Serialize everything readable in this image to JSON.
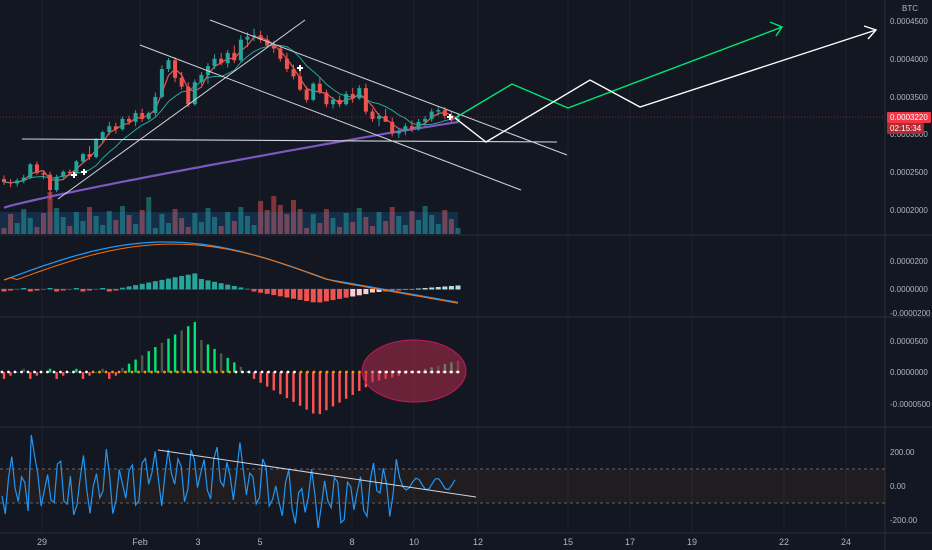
{
  "currency": "BTC",
  "price_tag": {
    "value": "0.0003220",
    "countdown": "02:15:34",
    "color": "#f23645"
  },
  "panels": {
    "main": {
      "yticks": [
        "0.0004500",
        "0.0004000",
        "0.0003500",
        "0.0003000",
        "0.0002500",
        "0.0002000"
      ],
      "ylim": [
        0.000176,
        0.000465
      ]
    },
    "macd": {
      "yticks": [
        "0.0000200",
        "0.0000000",
        "-0.0000200"
      ]
    },
    "histogram": {
      "yticks": [
        "0.0000500",
        "0.0000000",
        "-0.0000500"
      ]
    },
    "cci": {
      "yticks": [
        "200.00",
        "0.00",
        "-200.00"
      ]
    }
  },
  "x_ticks": [
    "29",
    "Feb",
    "3",
    "5",
    "8",
    "10",
    "12",
    "15",
    "17",
    "19",
    "22",
    "24"
  ],
  "colors": {
    "background": "#131722",
    "up": "#26a69a",
    "down": "#ef5350",
    "ma_long": "#7e57c2",
    "ma_fast": "#ef5350",
    "ma_slow": "#26a69a",
    "macd_line": "#2196f3",
    "signal_line": "#ff6d00",
    "projection_bull": "#00e676",
    "projection_alt": "#ffffff",
    "cci_line": "#2196f3",
    "hist_green": "#00e676",
    "hist_red": "#ff5252",
    "zero_dots": "#ffffff",
    "orange_dots": "#ff9800",
    "highlight_ellipse": "#b22b4a"
  },
  "chart_data": [
    {
      "type": "candlestick",
      "title": "",
      "candles": [
        [
          0.00024,
          0.000245,
          0.000232,
          0.000236
        ],
        [
          0.000236,
          0.00024,
          0.000229,
          0.000234
        ],
        [
          0.000234,
          0.000241,
          0.00023,
          0.000238
        ],
        [
          0.000238,
          0.000246,
          0.000234,
          0.000242
        ],
        [
          0.000242,
          0.000262,
          0.00024,
          0.00026
        ],
        [
          0.00026,
          0.000264,
          0.000246,
          0.000248
        ],
        [
          0.000248,
          0.000252,
          0.00024,
          0.000246
        ],
        [
          0.000246,
          0.00025,
          0.000212,
          0.000225
        ],
        [
          0.000225,
          0.000246,
          0.000222,
          0.000243
        ],
        [
          0.000243,
          0.000252,
          0.000241,
          0.00025
        ],
        [
          0.00025,
          0.000253,
          0.000245,
          0.000248
        ],
        [
          0.000248,
          0.000266,
          0.000247,
          0.000264
        ],
        [
          0.000264,
          0.000276,
          0.000262,
          0.000274
        ],
        [
          0.000274,
          0.000285,
          0.000266,
          0.00027
        ],
        [
          0.00027,
          0.000296,
          0.000268,
          0.000294
        ],
        [
          0.000294,
          0.000306,
          0.00029,
          0.000304
        ],
        [
          0.000304,
          0.000318,
          0.0003,
          0.000312
        ],
        [
          0.000312,
          0.000317,
          0.000302,
          0.000308
        ],
        [
          0.000308,
          0.000325,
          0.000306,
          0.000322
        ],
        [
          0.000322,
          0.000326,
          0.000314,
          0.000318
        ],
        [
          0.000318,
          0.000334,
          0.000312,
          0.00033
        ],
        [
          0.00033,
          0.000336,
          0.000318,
          0.000322
        ],
        [
          0.000322,
          0.000332,
          0.00032,
          0.00033
        ],
        [
          0.00033,
          0.000358,
          0.000326,
          0.000352
        ],
        [
          0.000352,
          0.000395,
          0.00035,
          0.00039
        ],
        [
          0.00039,
          0.000405,
          0.000386,
          0.000402
        ],
        [
          0.000402,
          0.000406,
          0.000372,
          0.000378
        ],
        [
          0.000378,
          0.000386,
          0.000362,
          0.000366
        ],
        [
          0.000366,
          0.000372,
          0.000338,
          0.000342
        ],
        [
          0.000342,
          0.000376,
          0.00034,
          0.000372
        ],
        [
          0.000372,
          0.000386,
          0.000368,
          0.000382
        ],
        [
          0.000382,
          0.000398,
          0.00037,
          0.000394
        ],
        [
          0.000394,
          0.00041,
          0.00039,
          0.000404
        ],
        [
          0.000404,
          0.000412,
          0.000395,
          0.000398
        ],
        [
          0.000398,
          0.000416,
          0.000392,
          0.000412
        ],
        [
          0.000412,
          0.000422,
          0.000398,
          0.000402
        ],
        [
          0.000402,
          0.000436,
          0.0004,
          0.00043
        ],
        [
          0.00043,
          0.00044,
          0.00042,
          0.000434
        ],
        [
          0.000434,
          0.000445,
          0.000428,
          0.000436
        ],
        [
          0.000436,
          0.000442,
          0.000426,
          0.00043
        ],
        [
          0.00043,
          0.000436,
          0.00042,
          0.000422
        ],
        [
          0.000422,
          0.000428,
          0.000412,
          0.000418
        ],
        [
          0.000418,
          0.000422,
          0.0004,
          0.000404
        ],
        [
          0.000404,
          0.000412,
          0.000386,
          0.00039
        ],
        [
          0.00039,
          0.000396,
          0.000376,
          0.00038
        ],
        [
          0.00038,
          0.000392,
          0.00036,
          0.000362
        ],
        [
          0.000362,
          0.000366,
          0.000344,
          0.000348
        ],
        [
          0.000348,
          0.000372,
          0.000346,
          0.00037
        ],
        [
          0.00037,
          0.000378,
          0.000356,
          0.000358
        ],
        [
          0.000358,
          0.000362,
          0.000338,
          0.000342
        ],
        [
          0.000342,
          0.000352,
          0.000336,
          0.000348
        ],
        [
          0.000348,
          0.000354,
          0.000338,
          0.000342
        ],
        [
          0.000342,
          0.00036,
          0.00034,
          0.000356
        ],
        [
          0.000356,
          0.000364,
          0.000344,
          0.00035
        ],
        [
          0.00035,
          0.000368,
          0.000348,
          0.000364
        ],
        [
          0.000364,
          0.00037,
          0.000328,
          0.000332
        ],
        [
          0.000332,
          0.000336,
          0.000318,
          0.000322
        ],
        [
          0.000322,
          0.00033,
          0.000312,
          0.000326
        ],
        [
          0.000326,
          0.000336,
          0.00032,
          0.000318
        ],
        [
          0.000318,
          0.000324,
          0.000298,
          0.000302
        ],
        [
          0.000302,
          0.00031,
          0.000296,
          0.000306
        ],
        [
          0.000306,
          0.000316,
          0.0003,
          0.000312
        ],
        [
          0.000312,
          0.00032,
          0.000304,
          0.000308
        ],
        [
          0.000308,
          0.000322,
          0.000306,
          0.000318
        ],
        [
          0.000318,
          0.000326,
          0.000312,
          0.000322
        ],
        [
          0.000322,
          0.000336,
          0.000318,
          0.000332
        ],
        [
          0.000332,
          0.000338,
          0.000326,
          0.000334
        ],
        [
          0.000334,
          0.000338,
          0.000322,
          0.000326
        ],
        [
          0.000326,
          0.000332,
          0.000318,
          0.00032
        ],
        [
          0.00032,
          0.00033,
          0.000316,
          0.000322
        ]
      ],
      "volume_tail": [
        52,
        40,
        38,
        30,
        36,
        44,
        50,
        58,
        46,
        40
      ]
    }
  ]
}
